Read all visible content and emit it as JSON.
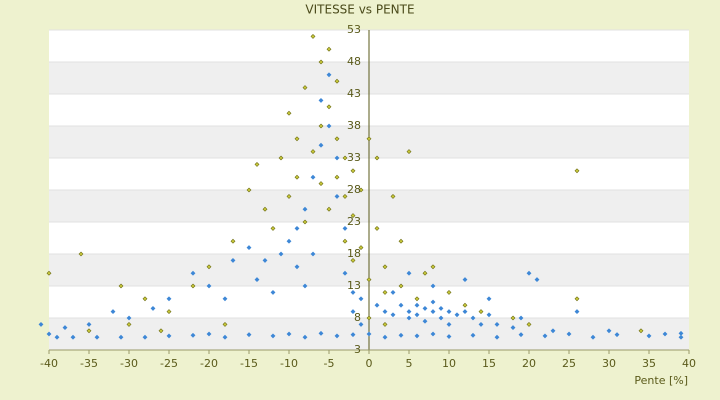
{
  "chart_data": {
    "type": "scatter",
    "title": "VITESSE vs PENTE",
    "x_label": "Pente [%]",
    "xlim": [
      -40,
      40
    ],
    "xticks": [
      -40,
      -35,
      -30,
      -25,
      -20,
      -15,
      -10,
      -5,
      0,
      5,
      10,
      15,
      20,
      25,
      30,
      35,
      40
    ],
    "ylim": [
      3,
      53
    ],
    "yticks": [
      3,
      8,
      13,
      18,
      23,
      28,
      33,
      38,
      43,
      48,
      53
    ],
    "grid": true,
    "series": [
      {
        "color": "#3d87d6",
        "x": [
          -40,
          -39,
          -37,
          -34,
          -31,
          -28,
          -25,
          -22,
          -20,
          -18,
          -15,
          -12,
          -10,
          -8,
          -6,
          -4,
          -2,
          0,
          2,
          4,
          6,
          8,
          10,
          13,
          16,
          19,
          22,
          25,
          28,
          31,
          35,
          37,
          39,
          39,
          -41,
          -38,
          -35,
          -32,
          -30,
          -27,
          -25,
          -22,
          -20,
          -18,
          -17,
          -15,
          -14,
          -13,
          -12,
          -11,
          -10,
          -9,
          -9,
          -8,
          -8,
          -7,
          -7,
          -6,
          -6,
          -5,
          -5,
          -4,
          -4,
          -3,
          -3,
          -2,
          -2,
          -1,
          -1,
          1,
          2,
          3,
          4,
          5,
          5,
          6,
          6,
          7,
          7,
          8,
          8,
          9,
          9,
          10,
          10,
          11,
          12,
          13,
          14,
          15,
          16,
          18,
          19,
          21,
          23,
          26,
          30,
          3,
          5,
          8,
          12,
          15,
          20
        ],
        "values": [
          5.5,
          5,
          5,
          5,
          5,
          5,
          5.2,
          5.3,
          5.5,
          5,
          5.4,
          5.2,
          5.5,
          5,
          5.6,
          5.2,
          5.4,
          5.5,
          5,
          5.3,
          5.2,
          5.5,
          5.1,
          5.3,
          5,
          5.4,
          5.2,
          5.5,
          5,
          5.4,
          5.2,
          5.5,
          5,
          5.6,
          7,
          6.5,
          7,
          9,
          8,
          9.5,
          11,
          15,
          13,
          11,
          17,
          19,
          14,
          17,
          12,
          18,
          20,
          16,
          22,
          13,
          25,
          30,
          18,
          35,
          42,
          46,
          38,
          33,
          27,
          22,
          15,
          12,
          9,
          11,
          7,
          10,
          9,
          8.5,
          10,
          9,
          8,
          10,
          8.5,
          9.5,
          7.5,
          9,
          10.5,
          8,
          9.5,
          9,
          7,
          8.5,
          9,
          8,
          7,
          8.5,
          7,
          6.5,
          8,
          14,
          6,
          9,
          6,
          12,
          15,
          13,
          14,
          11,
          15
        ]
      },
      {
        "color": "#c9c93a",
        "x": [
          -40,
          -36,
          -31,
          -28,
          -25,
          -22,
          -20,
          -17,
          -15,
          -14,
          -13,
          -12,
          -11,
          -10,
          -10,
          -9,
          -9,
          -8,
          -8,
          -7,
          -7,
          -6,
          -6,
          -6,
          -5,
          -5,
          -5,
          -4,
          -4,
          -4,
          -3,
          -3,
          -3,
          -2,
          -2,
          -2,
          -1,
          -1,
          0,
          0,
          1,
          1,
          2,
          2,
          3,
          4,
          4,
          5,
          6,
          7,
          8,
          10,
          12,
          14,
          18,
          20,
          26,
          26,
          34,
          -26,
          -18,
          -35,
          -30,
          0,
          2
        ],
        "values": [
          15,
          18,
          13,
          11,
          9,
          13,
          16,
          20,
          28,
          32,
          25,
          22,
          33,
          27,
          40,
          30,
          36,
          44,
          23,
          52,
          34,
          48,
          29,
          38,
          50,
          41,
          25,
          45,
          36,
          30,
          33,
          27,
          20,
          31,
          24,
          17,
          28,
          19,
          36,
          14,
          33,
          22,
          16,
          12,
          27,
          20,
          13,
          34,
          11,
          15,
          16,
          12,
          10,
          9,
          8,
          7,
          11,
          31,
          6,
          6,
          7,
          6,
          7,
          8,
          7
        ]
      }
    ]
  }
}
